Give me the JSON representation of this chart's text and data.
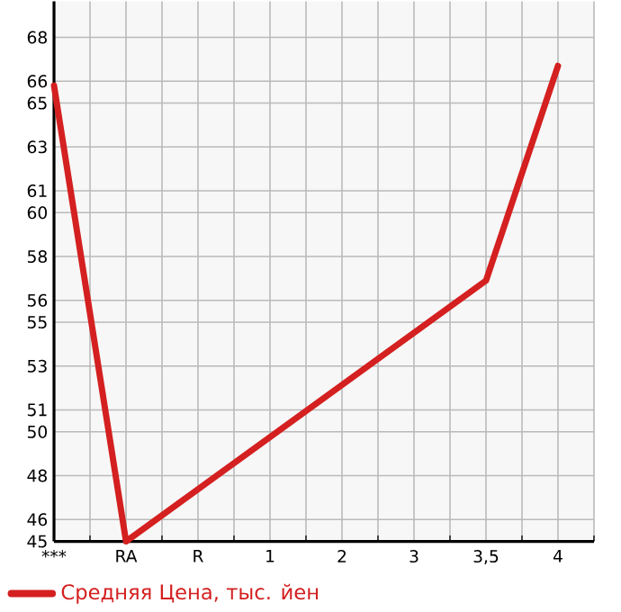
{
  "chart_data": {
    "type": "line",
    "categories": [
      "***",
      "RA",
      "R",
      "1",
      "2",
      "3",
      "3,5",
      "4"
    ],
    "series": [
      {
        "name": "Средняя Цена, тыс. йен",
        "color": "#d42020",
        "values": [
          65.8,
          45,
          null,
          null,
          null,
          null,
          56.9,
          66.7
        ]
      }
    ],
    "ylim": [
      45,
      69.64
    ],
    "yticks": [
      45,
      46,
      48,
      50,
      51,
      53,
      55,
      56,
      58,
      60,
      61,
      63,
      65,
      66,
      68
    ],
    "grid": true,
    "legend": "bottom left",
    "marker": "none",
    "line_style": "solid"
  }
}
